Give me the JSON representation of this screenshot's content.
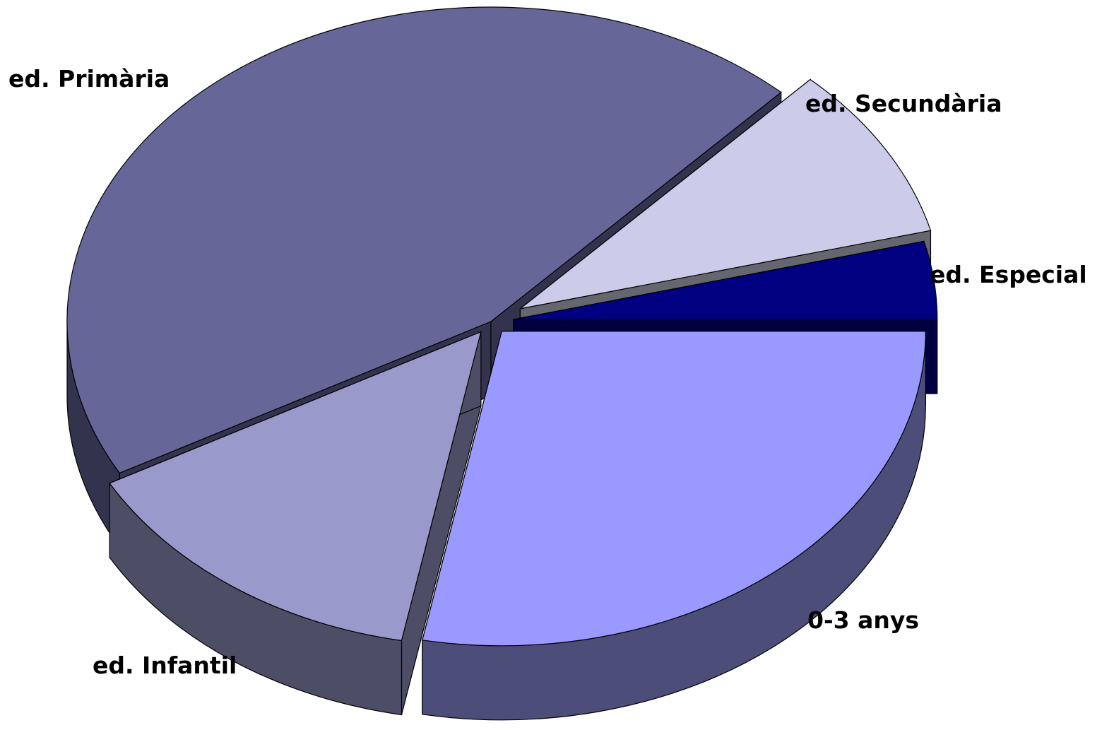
{
  "chart_data": {
    "type": "pie",
    "style": "3d-exploded",
    "title": "",
    "legend": "none",
    "start_angle_deg": 0,
    "direction": "clockwise",
    "slices": [
      {
        "label": "0-3 anys",
        "value": 28,
        "color": "#9999ff",
        "side_color": "#4d4d7a",
        "explode": 0.03
      },
      {
        "label": "ed. Infantil",
        "value": 14,
        "color": "#9999cc",
        "side_color": "#4d4d66",
        "explode": 0.03
      },
      {
        "label": "ed. Primària",
        "value": 45,
        "color": "#666699",
        "side_color": "#33334d",
        "explode": 0.0
      },
      {
        "label": "ed. Secundària",
        "value": 9,
        "color": "#ccccea",
        "side_color": "#66666f",
        "explode": 0.06
      },
      {
        "label": "ed. Especial",
        "value": 4,
        "color": "#000080",
        "side_color": "#000040",
        "explode": 0.04
      }
    ]
  }
}
